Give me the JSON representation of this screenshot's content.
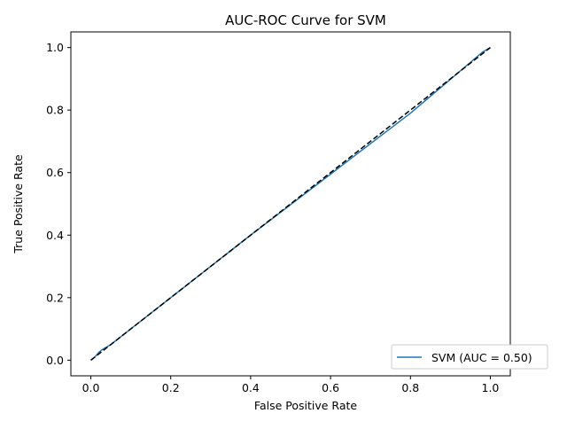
{
  "chart_data": {
    "type": "line",
    "title": "AUC-ROC Curve for SVM",
    "xlabel": "False Positive Rate",
    "ylabel": "True Positive Rate",
    "xlim": [
      -0.05,
      1.05
    ],
    "ylim": [
      -0.05,
      1.05
    ],
    "xticks": [
      0.0,
      0.2,
      0.4,
      0.6,
      0.8,
      1.0
    ],
    "yticks": [
      0.0,
      0.2,
      0.4,
      0.6,
      0.8,
      1.0
    ],
    "xtick_labels": [
      "0.0",
      "0.2",
      "0.4",
      "0.6",
      "0.8",
      "1.0"
    ],
    "ytick_labels": [
      "0.0",
      "0.2",
      "0.4",
      "0.6",
      "0.8",
      "1.0"
    ],
    "grid": false,
    "legend_position": "lower-right",
    "series": [
      {
        "name": "SVM (AUC = 0.50)",
        "color": "#1f77b4",
        "style": "solid",
        "x": [
          0.0,
          0.01,
          0.02,
          0.03,
          0.05,
          0.1,
          0.2,
          0.4,
          0.6,
          0.8,
          0.98,
          1.0
        ],
        "y": [
          0.0,
          0.01,
          0.025,
          0.035,
          0.05,
          0.1,
          0.2,
          0.4,
          0.595,
          0.79,
          0.985,
          1.0
        ]
      },
      {
        "color": "#000000",
        "style": "dashed",
        "x": [
          0.0,
          1.0
        ],
        "y": [
          0.0,
          1.0
        ]
      }
    ]
  }
}
